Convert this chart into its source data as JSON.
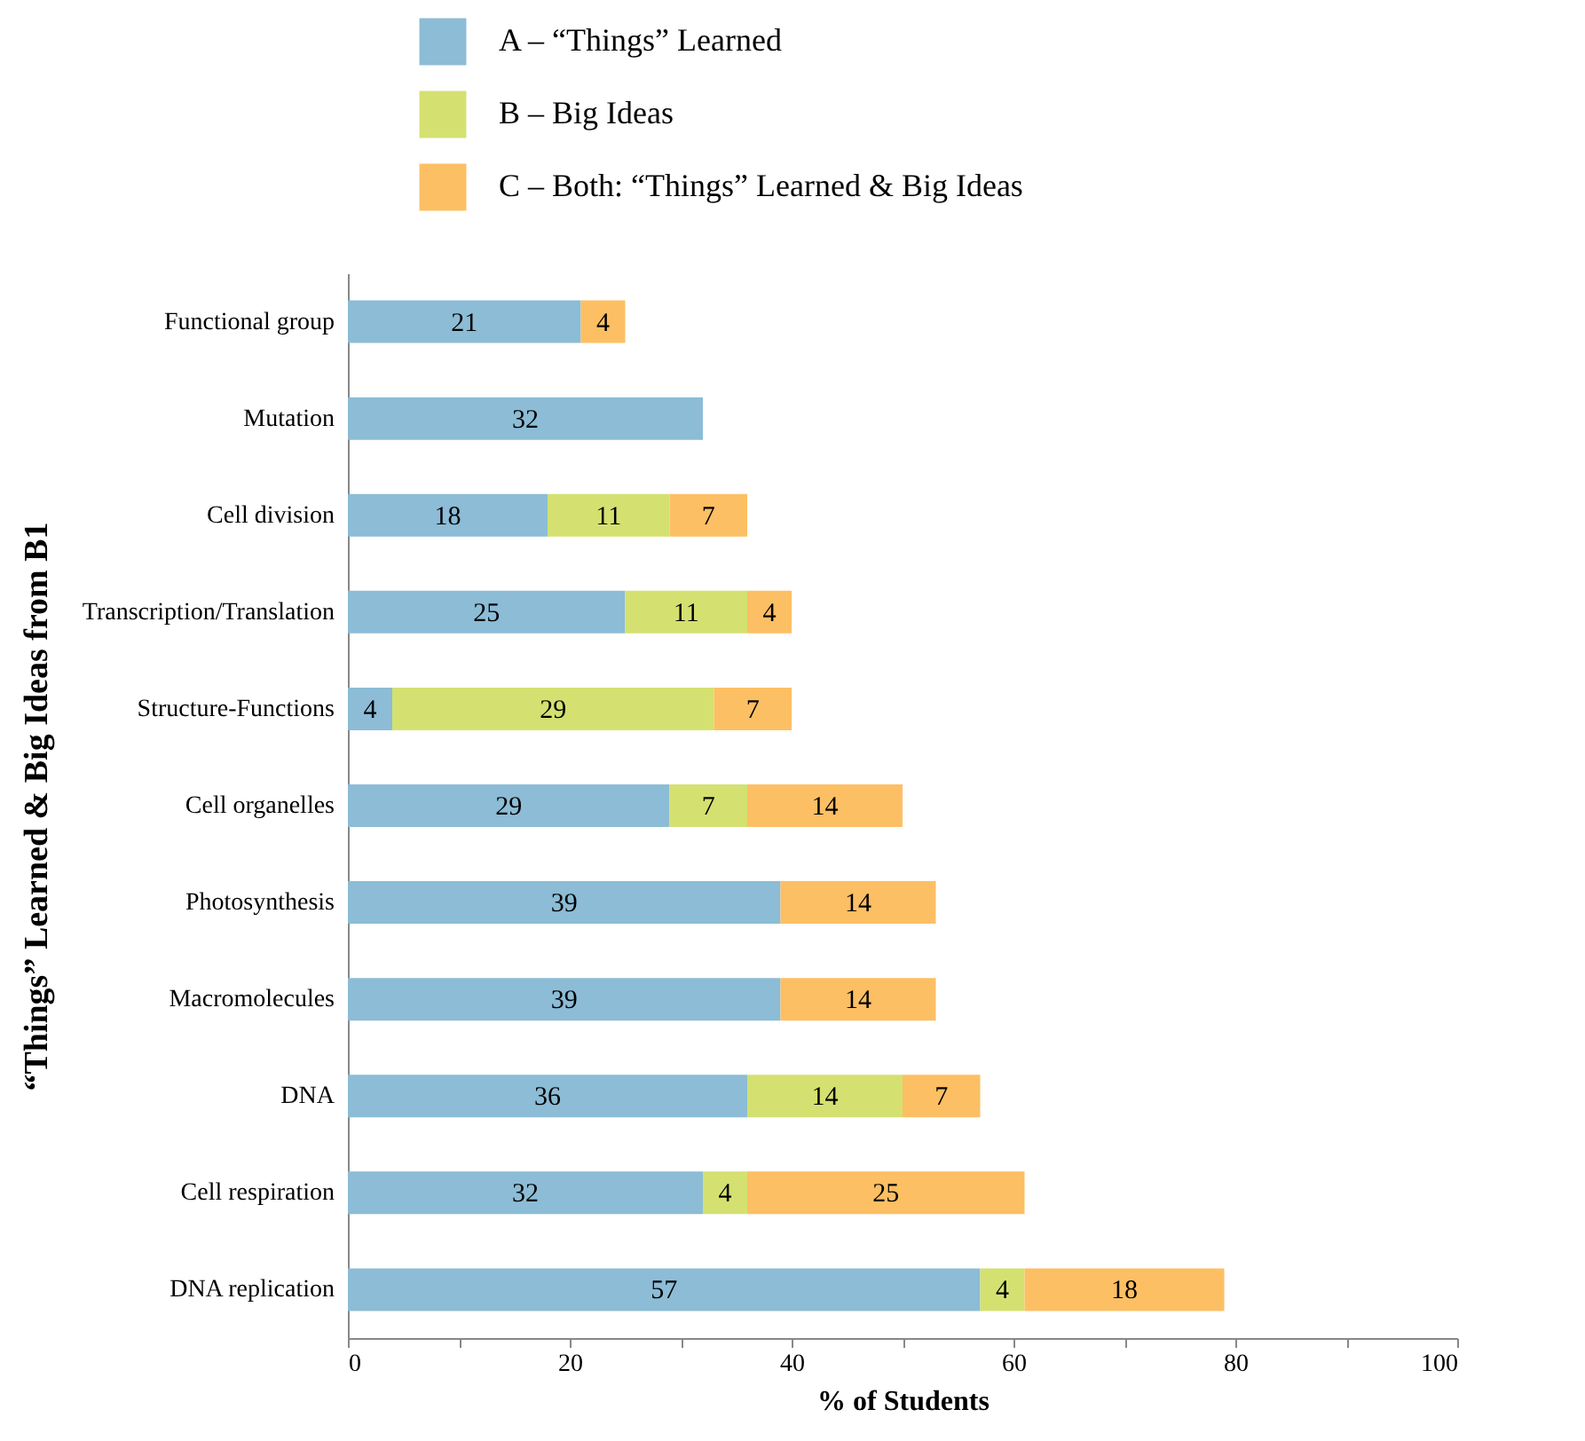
{
  "chart_data": {
    "type": "bar",
    "orientation": "horizontal",
    "stacked": true,
    "data_labels": true,
    "legend": "top",
    "grid": false,
    "xlabel": "% of Students",
    "ylabel": "“Things” Learned & Big Ideas from B1",
    "categories": [
      "Functional group",
      "Mutation",
      "Cell division",
      "Transcription/Translation",
      "Structure-Functions",
      "Cell organelles",
      "Photosynthesis",
      "Macromolecules",
      "DNA",
      "Cell respiration",
      "DNA replication"
    ],
    "xlim": [
      0,
      100
    ],
    "xticks": [
      0,
      {
        "value": 10,
        "label": null
      },
      20,
      {
        "value": 30,
        "label": null
      },
      40,
      {
        "value": 50,
        "label": null
      },
      60,
      {
        "value": 70,
        "label": null
      },
      80,
      {
        "value": 90,
        "label": null
      },
      100
    ],
    "series": [
      {
        "name": "A – “Things” Learned",
        "color": "#8cbcd6",
        "values": [
          21,
          32,
          18,
          25,
          4,
          29,
          39,
          39,
          36,
          32,
          57
        ]
      },
      {
        "name": "B – Big Ideas",
        "color": "#d4e171",
        "values": [
          null,
          null,
          11,
          11,
          29,
          7,
          null,
          null,
          14,
          4,
          4
        ]
      },
      {
        "name": "C – Both: “Things” Learned & Big Ideas",
        "color": "#fdbf63",
        "values": [
          4,
          null,
          7,
          4,
          7,
          14,
          14,
          14,
          7,
          25,
          18
        ]
      }
    ]
  }
}
